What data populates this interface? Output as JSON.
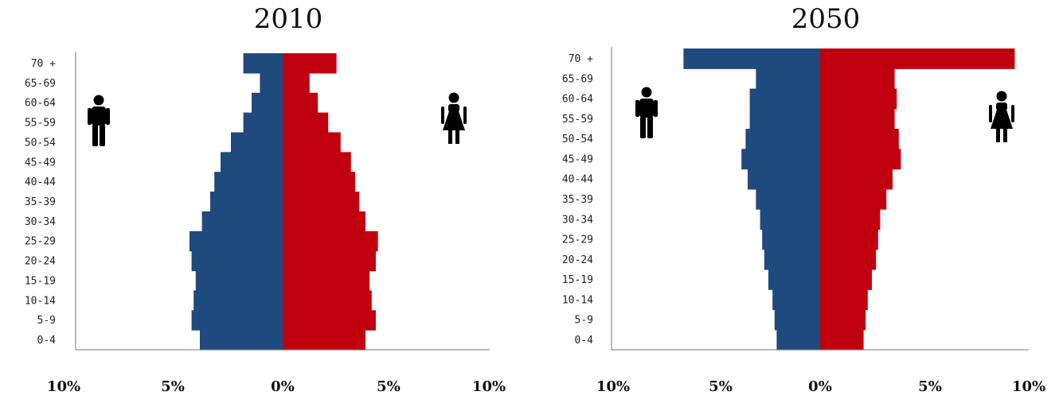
{
  "colors": {
    "male": "#1f4a7e",
    "female": "#c0000e",
    "axis": "#777777",
    "icon": "#000000"
  },
  "icons": {
    "male": "male-person-icon",
    "female": "female-person-icon"
  },
  "chart_data": [
    {
      "type": "bar",
      "orientation": "horizontal",
      "title": "2010",
      "categories": [
        "70 +",
        "65-69",
        "60-64",
        "55-59",
        "50-54",
        "45-49",
        "40-44",
        "35-39",
        "30-34",
        "25-29",
        "20-24",
        "15-19",
        "10-14",
        "5-9",
        "0-4"
      ],
      "series": [
        {
          "values": [
            1.9,
            1.1,
            1.5,
            1.9,
            2.5,
            3.0,
            3.3,
            3.5,
            3.9,
            4.5,
            4.4,
            4.2,
            4.3,
            4.4,
            4.0
          ]
        },
        {
          "values": [
            2.6,
            1.3,
            1.7,
            2.2,
            2.8,
            3.3,
            3.5,
            3.7,
            4.0,
            4.6,
            4.5,
            4.2,
            4.3,
            4.5,
            4.0
          ]
        }
      ],
      "x_ticks": [
        "10%",
        "5%",
        "0%",
        "5%",
        "10%"
      ],
      "xlim": [
        -10,
        10
      ],
      "grid": false
    },
    {
      "type": "bar",
      "orientation": "horizontal",
      "title": "2050",
      "categories": [
        "70 +",
        "65-69",
        "60-64",
        "55-59",
        "50-54",
        "45-49",
        "40-44",
        "35-39",
        "30-34",
        "25-29",
        "20-24",
        "15-19",
        "10-14",
        "5-9",
        "0-4"
      ],
      "series": [
        {
          "values": [
            6.6,
            3.1,
            3.4,
            3.4,
            3.6,
            3.8,
            3.5,
            3.1,
            2.9,
            2.8,
            2.7,
            2.5,
            2.3,
            2.2,
            2.1
          ]
        },
        {
          "values": [
            9.4,
            3.6,
            3.7,
            3.6,
            3.8,
            3.9,
            3.5,
            3.2,
            2.9,
            2.8,
            2.7,
            2.5,
            2.3,
            2.2,
            2.1
          ]
        }
      ],
      "x_ticks": [
        "10%",
        "5%",
        "0%",
        "5%",
        "10%"
      ],
      "xlim": [
        -10,
        10
      ],
      "grid": false
    }
  ]
}
